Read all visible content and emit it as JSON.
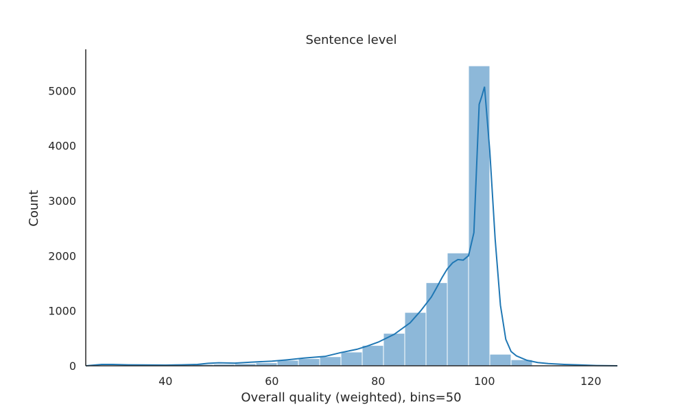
{
  "chart_data": {
    "type": "bar",
    "title": "Sentence level",
    "xlabel": "Overall quality (weighted), bins=50",
    "ylabel": "Count",
    "xlim": [
      25,
      125
    ],
    "ylim": [
      0,
      5750
    ],
    "x_ticks": [
      40,
      60,
      80,
      100,
      120
    ],
    "y_ticks": [
      0,
      1000,
      2000,
      3000,
      4000,
      5000
    ],
    "grid": false,
    "bar_color": "#8db8d9",
    "bar_edge_color": "#ffffff",
    "line_color": "#1f77b4",
    "bins": [
      {
        "x0": 25.0,
        "x1": 29.0,
        "count": 0
      },
      {
        "x0": 29.0,
        "x1": 33.0,
        "count": 0
      },
      {
        "x0": 33.0,
        "x1": 37.0,
        "count": 0
      },
      {
        "x0": 37.0,
        "x1": 41.0,
        "count": 0
      },
      {
        "x0": 41.0,
        "x1": 45.0,
        "count": 15
      },
      {
        "x0": 45.0,
        "x1": 49.0,
        "count": 25
      },
      {
        "x0": 49.0,
        "x1": 53.0,
        "count": 30
      },
      {
        "x0": 53.0,
        "x1": 57.0,
        "count": 40
      },
      {
        "x0": 57.0,
        "x1": 61.0,
        "count": 55
      },
      {
        "x0": 61.0,
        "x1": 65.0,
        "count": 100
      },
      {
        "x0": 65.0,
        "x1": 69.0,
        "count": 130
      },
      {
        "x0": 69.0,
        "x1": 73.0,
        "count": 165
      },
      {
        "x0": 73.0,
        "x1": 77.0,
        "count": 250
      },
      {
        "x0": 77.0,
        "x1": 81.0,
        "count": 370
      },
      {
        "x0": 81.0,
        "x1": 85.0,
        "count": 590
      },
      {
        "x0": 85.0,
        "x1": 89.0,
        "count": 970
      },
      {
        "x0": 89.0,
        "x1": 93.0,
        "count": 1510
      },
      {
        "x0": 93.0,
        "x1": 97.0,
        "count": 2050
      },
      {
        "x0": 97.0,
        "x1": 101.0,
        "count": 5450
      },
      {
        "x0": 101.0,
        "x1": 105.0,
        "count": 210
      },
      {
        "x0": 105.0,
        "x1": 109.0,
        "count": 110
      }
    ],
    "kde": {
      "x": [
        25,
        28,
        30,
        33,
        36,
        40,
        43,
        46,
        48,
        50,
        53,
        56,
        60,
        63,
        66,
        70,
        73,
        76,
        78,
        80,
        83,
        86,
        88,
        90,
        91,
        92,
        93,
        94,
        95,
        96,
        97,
        98,
        99,
        99.5,
        100,
        101,
        102,
        103,
        104,
        105,
        106,
        107,
        108,
        110,
        112,
        115,
        118,
        121,
        125
      ],
      "y": [
        0,
        25,
        25,
        18,
        15,
        12,
        18,
        25,
        45,
        55,
        48,
        65,
        85,
        110,
        140,
        170,
        240,
        300,
        360,
        430,
        570,
        780,
        1000,
        1250,
        1420,
        1600,
        1760,
        1870,
        1930,
        1920,
        2000,
        2420,
        4750,
        4900,
        5070,
        3900,
        2300,
        1100,
        480,
        260,
        180,
        140,
        100,
        60,
        40,
        25,
        15,
        5,
        0
      ]
    }
  }
}
